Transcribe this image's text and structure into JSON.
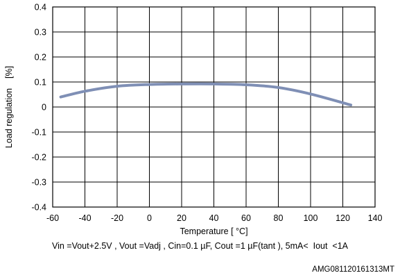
{
  "chart_data": {
    "type": "line",
    "xlabel": "Temperature [ °C]",
    "ylabel": "Load regulation    [%]",
    "xlim": [
      -60,
      140
    ],
    "ylim": [
      -0.4,
      0.4
    ],
    "xticks": [
      -60,
      -40,
      -20,
      0,
      20,
      40,
      60,
      80,
      100,
      120,
      140
    ],
    "yticks": [
      0.4,
      0.3,
      0.2,
      0.1,
      0,
      -0.1,
      -0.2,
      -0.3,
      -0.4
    ],
    "ytick_labels": [
      "0.4",
      "0.3",
      "0.2",
      "0.1",
      "0",
      "-0.1",
      "-0.2",
      "-0.3",
      "-0.4"
    ],
    "grid": true,
    "series": [
      {
        "color": "#7f8fb5",
        "x": [
          -55,
          -40,
          -20,
          0,
          20,
          40,
          60,
          80,
          100,
          125
        ],
        "y": [
          0.04,
          0.063,
          0.083,
          0.09,
          0.092,
          0.092,
          0.089,
          0.078,
          0.052,
          0.008
        ]
      }
    ]
  },
  "caption": "Vin =Vout+2.5V , Vout =Vadj , Cin=0.1 µF, Cout =1 µF(tant ), 5mA<  Iout  <1A",
  "figure_code": "AMG081120161313MT"
}
